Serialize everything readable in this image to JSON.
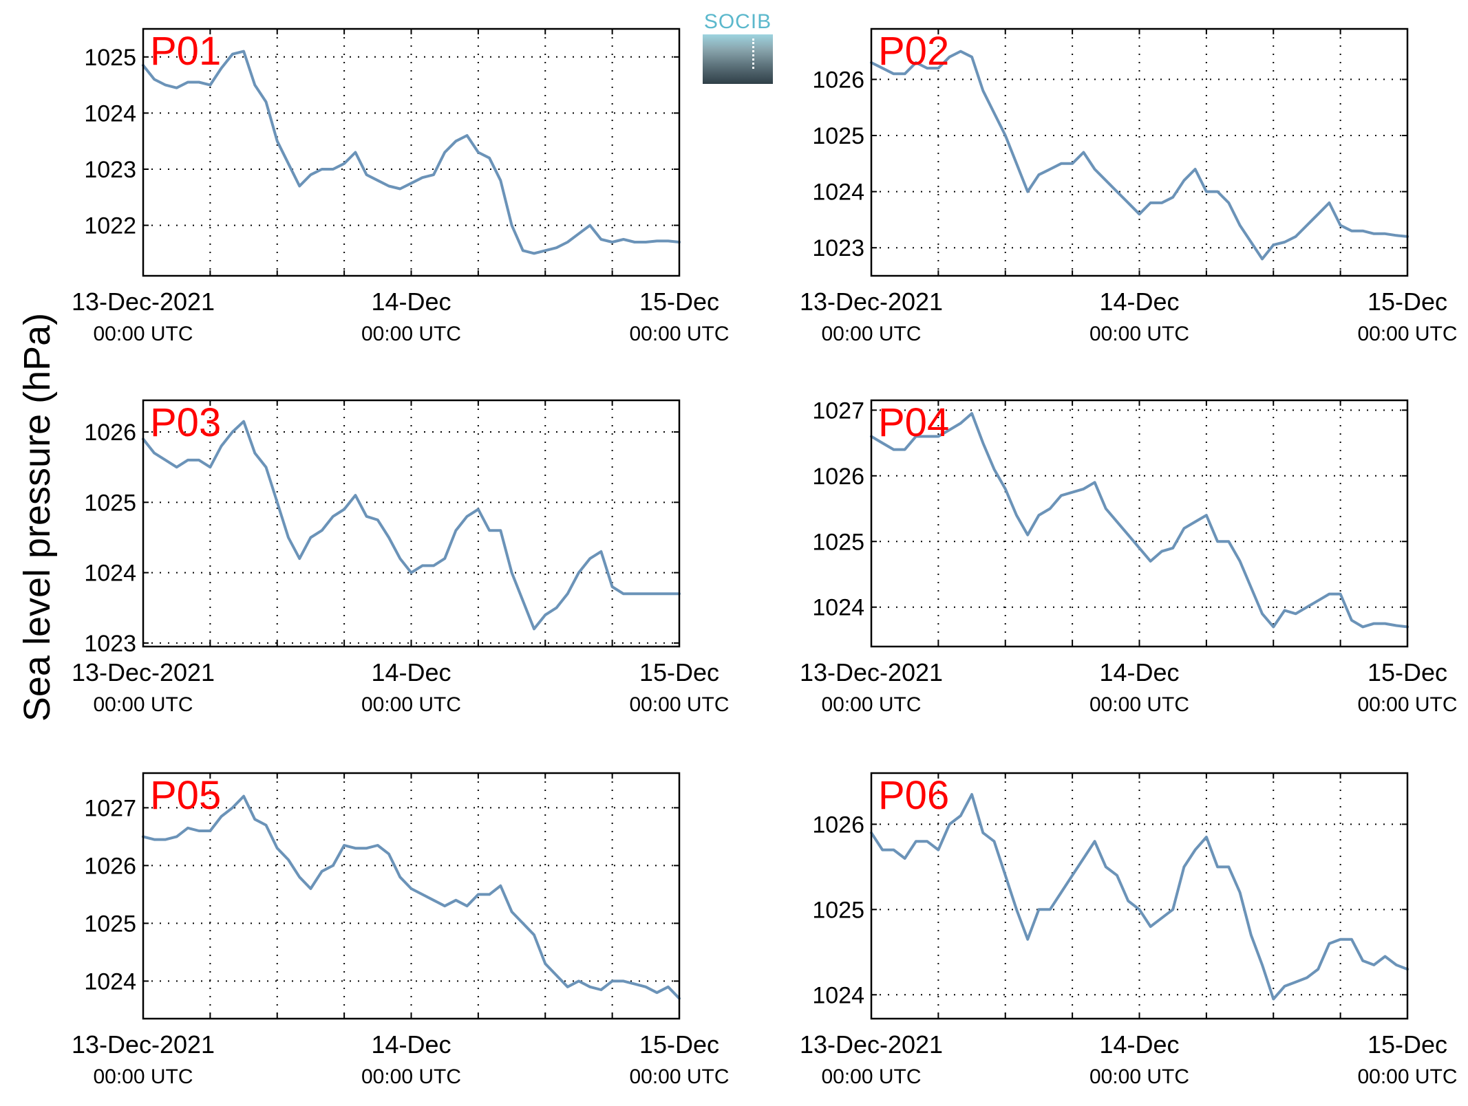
{
  "ylabel": "Sea level pressure (hPa)",
  "logo": {
    "text": "SOCIB"
  },
  "colors": {
    "line": "#6b93b8",
    "panel_label": "#ff0000",
    "grid": "#000000"
  },
  "chart_data": [
    {
      "type": "line",
      "title": "P01",
      "x_ticks": [
        {
          "main": "13-Dec-2021",
          "sub": "00:00 UTC"
        },
        {
          "main": "14-Dec",
          "sub": "00:00 UTC"
        },
        {
          "main": "15-Dec",
          "sub": "00:00 UTC"
        }
      ],
      "x_hours_range": [
        0,
        48
      ],
      "grid": true,
      "yticks": [
        1022,
        1023,
        1024,
        1025
      ],
      "ylim": [
        1021.1,
        1025.5
      ],
      "series": [
        {
          "x_hours": [
            0,
            1,
            2,
            3,
            4,
            5,
            6,
            7,
            8,
            9,
            10,
            11,
            12,
            13,
            14,
            15,
            16,
            17,
            18,
            19,
            20,
            21,
            22,
            23,
            24,
            25,
            26,
            27,
            28,
            29,
            30,
            31,
            32,
            33,
            34,
            35,
            36,
            37,
            38,
            39,
            40,
            41,
            42,
            43,
            44,
            45,
            46,
            47,
            48
          ],
          "values": [
            1024.85,
            1024.6,
            1024.5,
            1024.45,
            1024.55,
            1024.55,
            1024.5,
            1024.8,
            1025.05,
            1025.1,
            1024.5,
            1024.2,
            1023.5,
            1023.1,
            1022.7,
            1022.9,
            1023.0,
            1023.0,
            1023.1,
            1023.3,
            1022.9,
            1022.8,
            1022.7,
            1022.65,
            1022.75,
            1022.85,
            1022.9,
            1023.3,
            1023.5,
            1023.6,
            1023.3,
            1023.2,
            1022.8,
            1022.0,
            1021.55,
            1021.5,
            1021.55,
            1021.6,
            1021.7,
            1021.85,
            1022.0,
            1021.75,
            1021.7,
            1021.75,
            1021.7,
            1021.7,
            1021.72,
            1021.72,
            1021.7
          ]
        }
      ]
    },
    {
      "type": "line",
      "title": "P02",
      "x_ticks": [
        {
          "main": "13-Dec-2021",
          "sub": "00:00 UTC"
        },
        {
          "main": "14-Dec",
          "sub": "00:00 UTC"
        },
        {
          "main": "15-Dec",
          "sub": "00:00 UTC"
        }
      ],
      "x_hours_range": [
        0,
        48
      ],
      "grid": true,
      "yticks": [
        1023,
        1024,
        1025,
        1026
      ],
      "ylim": [
        1022.5,
        1026.9
      ],
      "series": [
        {
          "x_hours": [
            0,
            1,
            2,
            3,
            4,
            5,
            6,
            7,
            8,
            9,
            10,
            11,
            12,
            13,
            14,
            15,
            16,
            17,
            18,
            19,
            20,
            21,
            22,
            23,
            24,
            25,
            26,
            27,
            28,
            29,
            30,
            31,
            32,
            33,
            34,
            35,
            36,
            37,
            38,
            39,
            40,
            41,
            42,
            43,
            44,
            45,
            46,
            47,
            48
          ],
          "values": [
            1026.3,
            1026.2,
            1026.1,
            1026.1,
            1026.3,
            1026.2,
            1026.2,
            1026.4,
            1026.5,
            1026.4,
            1025.8,
            1025.4,
            1025.0,
            1024.5,
            1024.0,
            1024.3,
            1024.4,
            1024.5,
            1024.5,
            1024.7,
            1024.4,
            1024.2,
            1024.0,
            1023.8,
            1023.6,
            1023.8,
            1023.8,
            1023.9,
            1024.2,
            1024.4,
            1024.0,
            1024.0,
            1023.8,
            1023.4,
            1023.1,
            1022.8,
            1023.05,
            1023.1,
            1023.2,
            1023.4,
            1023.6,
            1023.8,
            1023.4,
            1023.3,
            1023.3,
            1023.25,
            1023.25,
            1023.22,
            1023.2
          ]
        }
      ]
    },
    {
      "type": "line",
      "title": "P03",
      "x_ticks": [
        {
          "main": "13-Dec-2021",
          "sub": "00:00 UTC"
        },
        {
          "main": "14-Dec",
          "sub": "00:00 UTC"
        },
        {
          "main": "15-Dec",
          "sub": "00:00 UTC"
        }
      ],
      "x_hours_range": [
        0,
        48
      ],
      "grid": true,
      "yticks": [
        1023,
        1024,
        1025,
        1026
      ],
      "ylim": [
        1022.95,
        1026.45
      ],
      "series": [
        {
          "x_hours": [
            0,
            1,
            2,
            3,
            4,
            5,
            6,
            7,
            8,
            9,
            10,
            11,
            12,
            13,
            14,
            15,
            16,
            17,
            18,
            19,
            20,
            21,
            22,
            23,
            24,
            25,
            26,
            27,
            28,
            29,
            30,
            31,
            32,
            33,
            34,
            35,
            36,
            37,
            38,
            39,
            40,
            41,
            42,
            43,
            44,
            45,
            46,
            47,
            48
          ],
          "values": [
            1025.9,
            1025.7,
            1025.6,
            1025.5,
            1025.6,
            1025.6,
            1025.5,
            1025.8,
            1026.0,
            1026.15,
            1025.7,
            1025.5,
            1025.0,
            1024.5,
            1024.2,
            1024.5,
            1024.6,
            1024.8,
            1024.9,
            1025.1,
            1024.8,
            1024.75,
            1024.5,
            1024.2,
            1024.0,
            1024.1,
            1024.1,
            1024.2,
            1024.6,
            1024.8,
            1024.9,
            1024.6,
            1024.6,
            1024.0,
            1023.6,
            1023.2,
            1023.4,
            1023.5,
            1023.7,
            1024.0,
            1024.2,
            1024.3,
            1023.8,
            1023.7,
            1023.7,
            1023.7,
            1023.7,
            1023.7,
            1023.7
          ]
        }
      ]
    },
    {
      "type": "line",
      "title": "P04",
      "x_ticks": [
        {
          "main": "13-Dec-2021",
          "sub": "00:00 UTC"
        },
        {
          "main": "14-Dec",
          "sub": "00:00 UTC"
        },
        {
          "main": "15-Dec",
          "sub": "00:00 UTC"
        }
      ],
      "x_hours_range": [
        0,
        48
      ],
      "grid": true,
      "yticks": [
        1024,
        1025,
        1026,
        1027
      ],
      "ylim": [
        1023.4,
        1027.15
      ],
      "series": [
        {
          "x_hours": [
            0,
            1,
            2,
            3,
            4,
            5,
            6,
            7,
            8,
            9,
            10,
            11,
            12,
            13,
            14,
            15,
            16,
            17,
            18,
            19,
            20,
            21,
            22,
            23,
            24,
            25,
            26,
            27,
            28,
            29,
            30,
            31,
            32,
            33,
            34,
            35,
            36,
            37,
            38,
            39,
            40,
            41,
            42,
            43,
            44,
            45,
            46,
            47,
            48
          ],
          "values": [
            1026.6,
            1026.5,
            1026.4,
            1026.4,
            1026.6,
            1026.6,
            1026.6,
            1026.7,
            1026.8,
            1026.95,
            1026.5,
            1026.1,
            1025.8,
            1025.4,
            1025.1,
            1025.4,
            1025.5,
            1025.7,
            1025.75,
            1025.8,
            1025.9,
            1025.5,
            1025.3,
            1025.1,
            1024.9,
            1024.7,
            1024.85,
            1024.9,
            1025.2,
            1025.3,
            1025.4,
            1025.0,
            1025.0,
            1024.7,
            1024.3,
            1023.9,
            1023.7,
            1023.95,
            1023.9,
            1024.0,
            1024.1,
            1024.2,
            1024.2,
            1023.8,
            1023.7,
            1023.75,
            1023.75,
            1023.72,
            1023.7
          ]
        }
      ]
    },
    {
      "type": "line",
      "title": "P05",
      "x_ticks": [
        {
          "main": "13-Dec-2021",
          "sub": "00:00 UTC"
        },
        {
          "main": "14-Dec",
          "sub": "00:00 UTC"
        },
        {
          "main": "15-Dec",
          "sub": "00:00 UTC"
        }
      ],
      "x_hours_range": [
        0,
        48
      ],
      "grid": true,
      "yticks": [
        1024,
        1025,
        1026,
        1027
      ],
      "ylim": [
        1023.35,
        1027.6
      ],
      "series": [
        {
          "x_hours": [
            0,
            1,
            2,
            3,
            4,
            5,
            6,
            7,
            8,
            9,
            10,
            11,
            12,
            13,
            14,
            15,
            16,
            17,
            18,
            19,
            20,
            21,
            22,
            23,
            24,
            25,
            26,
            27,
            28,
            29,
            30,
            31,
            32,
            33,
            34,
            35,
            36,
            37,
            38,
            39,
            40,
            41,
            42,
            43,
            44,
            45,
            46,
            47,
            48
          ],
          "values": [
            1026.5,
            1026.45,
            1026.45,
            1026.5,
            1026.65,
            1026.6,
            1026.6,
            1026.85,
            1027.0,
            1027.2,
            1026.8,
            1026.7,
            1026.3,
            1026.1,
            1025.8,
            1025.6,
            1025.9,
            1026.0,
            1026.35,
            1026.3,
            1026.3,
            1026.35,
            1026.2,
            1025.8,
            1025.6,
            1025.5,
            1025.4,
            1025.3,
            1025.4,
            1025.3,
            1025.5,
            1025.5,
            1025.65,
            1025.2,
            1025.0,
            1024.8,
            1024.3,
            1024.1,
            1023.9,
            1024.0,
            1023.9,
            1023.85,
            1024.0,
            1024.0,
            1023.95,
            1023.9,
            1023.8,
            1023.9,
            1023.7
          ]
        }
      ]
    },
    {
      "type": "line",
      "title": "P06",
      "x_ticks": [
        {
          "main": "13-Dec-2021",
          "sub": "00:00 UTC"
        },
        {
          "main": "14-Dec",
          "sub": "00:00 UTC"
        },
        {
          "main": "15-Dec",
          "sub": "00:00 UTC"
        }
      ],
      "x_hours_range": [
        0,
        48
      ],
      "grid": true,
      "yticks": [
        1024,
        1025,
        1026
      ],
      "ylim": [
        1023.72,
        1026.6
      ],
      "series": [
        {
          "x_hours": [
            0,
            1,
            2,
            3,
            4,
            5,
            6,
            7,
            8,
            9,
            10,
            11,
            12,
            13,
            14,
            15,
            16,
            17,
            18,
            19,
            20,
            21,
            22,
            23,
            24,
            25,
            26,
            27,
            28,
            29,
            30,
            31,
            32,
            33,
            34,
            35,
            36,
            37,
            38,
            39,
            40,
            41,
            42,
            43,
            44,
            45,
            46,
            47,
            48
          ],
          "values": [
            1025.9,
            1025.7,
            1025.7,
            1025.6,
            1025.8,
            1025.8,
            1025.7,
            1026.0,
            1026.1,
            1026.35,
            1025.9,
            1025.8,
            1025.4,
            1025.0,
            1024.65,
            1025.0,
            1025.0,
            1025.2,
            1025.4,
            1025.6,
            1025.8,
            1025.5,
            1025.4,
            1025.1,
            1025.0,
            1024.8,
            1024.9,
            1025.0,
            1025.5,
            1025.7,
            1025.85,
            1025.5,
            1025.5,
            1025.2,
            1024.7,
            1024.35,
            1023.95,
            1024.1,
            1024.15,
            1024.2,
            1024.3,
            1024.6,
            1024.65,
            1024.65,
            1024.4,
            1024.35,
            1024.45,
            1024.35,
            1024.3
          ]
        }
      ]
    }
  ]
}
